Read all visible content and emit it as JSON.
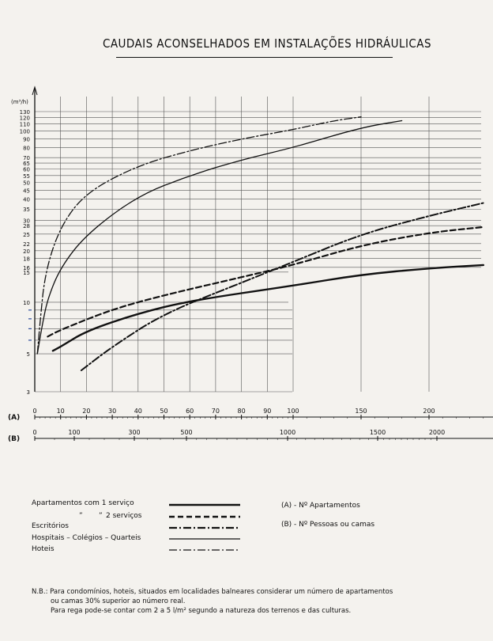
{
  "title": "CAUDAIS ACONSELHADOS EM INSTALAÇÕES HIDRÁULICAS",
  "chart_data": {
    "type": "line",
    "ylabel": "(m³/h)",
    "y_scale": "log",
    "ylim": [
      3,
      130
    ],
    "y_ticks": [
      3,
      5,
      6,
      7,
      8,
      9,
      10,
      15,
      16,
      18,
      20,
      22,
      25,
      28,
      30,
      35,
      40,
      45,
      50,
      55,
      60,
      65,
      70,
      80,
      90,
      100,
      110,
      120,
      130
    ],
    "y_tick_labels": [
      "3",
      "5",
      "",
      "",
      "",
      "",
      "10",
      "15",
      "16",
      "18",
      "20",
      "22",
      "25",
      "28",
      "30",
      "35",
      "40",
      "45",
      "50",
      "55",
      "60",
      "65",
      "70",
      "80",
      "90",
      "100",
      "110",
      "120",
      "130"
    ],
    "x_scale_A": {
      "label": "(A)",
      "ticks": [
        0,
        10,
        20,
        30,
        40,
        50,
        60,
        70,
        80,
        90,
        100,
        150,
        200
      ]
    },
    "x_scale_B": {
      "label": "(B)",
      "ticks": [
        0,
        100,
        300,
        500,
        1000,
        1500,
        2000
      ]
    },
    "series": [
      {
        "name": "Apartamentos com 1 serviço",
        "style": "solid-thick",
        "points": [
          [
            7,
            5.2
          ],
          [
            10,
            5.5
          ],
          [
            20,
            6.8
          ],
          [
            40,
            8.6
          ],
          [
            60,
            10.2
          ],
          [
            100,
            12.5
          ],
          [
            150,
            14.5
          ],
          [
            200,
            15.8
          ],
          [
            240,
            16.5
          ]
        ]
      },
      {
        "name": "2 serviços",
        "style": "dashed-thick",
        "points": [
          [
            5,
            6.3
          ],
          [
            10,
            6.9
          ],
          [
            30,
            9.1
          ],
          [
            50,
            11.0
          ],
          [
            80,
            14.0
          ],
          [
            100,
            16.5
          ],
          [
            150,
            21.5
          ],
          [
            200,
            25.5
          ],
          [
            240,
            27.5
          ]
        ]
      },
      {
        "name": "Escritórios",
        "style": "dashdot-thick",
        "points": [
          [
            18,
            4.0
          ],
          [
            30,
            5.5
          ],
          [
            50,
            8.6
          ],
          [
            80,
            13.0
          ],
          [
            100,
            17.2
          ],
          [
            150,
            25.0
          ],
          [
            200,
            32.0
          ],
          [
            240,
            38.0
          ]
        ]
      },
      {
        "name": "Hospitais – Colégios – Quarteis",
        "style": "solid-thin",
        "points": [
          [
            1,
            5.0
          ],
          [
            3,
            7.5
          ],
          [
            5,
            10.5
          ],
          [
            10,
            16.0
          ],
          [
            20,
            25.0
          ],
          [
            40,
            42.0
          ],
          [
            60,
            55.0
          ],
          [
            80,
            68.0
          ],
          [
            100,
            80.0
          ],
          [
            150,
            105.0
          ],
          [
            180,
            115.0
          ]
        ]
      },
      {
        "name": "Hoteis",
        "style": "dashdot-thin",
        "points": [
          [
            1,
            5.0
          ],
          [
            2,
            7.5
          ],
          [
            4,
            15.0
          ],
          [
            10,
            28.0
          ],
          [
            20,
            44.0
          ],
          [
            40,
            63.0
          ],
          [
            60,
            77.0
          ],
          [
            80,
            90.0
          ],
          [
            100,
            102.0
          ],
          [
            130,
            115.0
          ],
          [
            150,
            121.0
          ]
        ]
      }
    ]
  },
  "legend": {
    "apartamentos_1": "Apartamentos com 1 serviço",
    "apartamentos_2_prefix": "”",
    "apartamentos_2_ditto": "”",
    "apartamentos_2": "2 serviços",
    "escritorios": "Escritórios",
    "hospitais": "Hospitais – Colégios – Quarteis",
    "hoteis": "Hoteis"
  },
  "keys": {
    "a": "(A) - Nº Apartamentos",
    "b": "(B) - Nº Pessoas ou camas"
  },
  "notes": {
    "line1": "N.B.: Para condomínios, hoteis, situados em localidades balneares considerar um número de apartamentos",
    "line2": "ou camas 30% superior ao número real.",
    "line3": "Para rega pode-se contar com 2 a 5 l/m² segundo a natureza dos terrenos e das culturas."
  }
}
